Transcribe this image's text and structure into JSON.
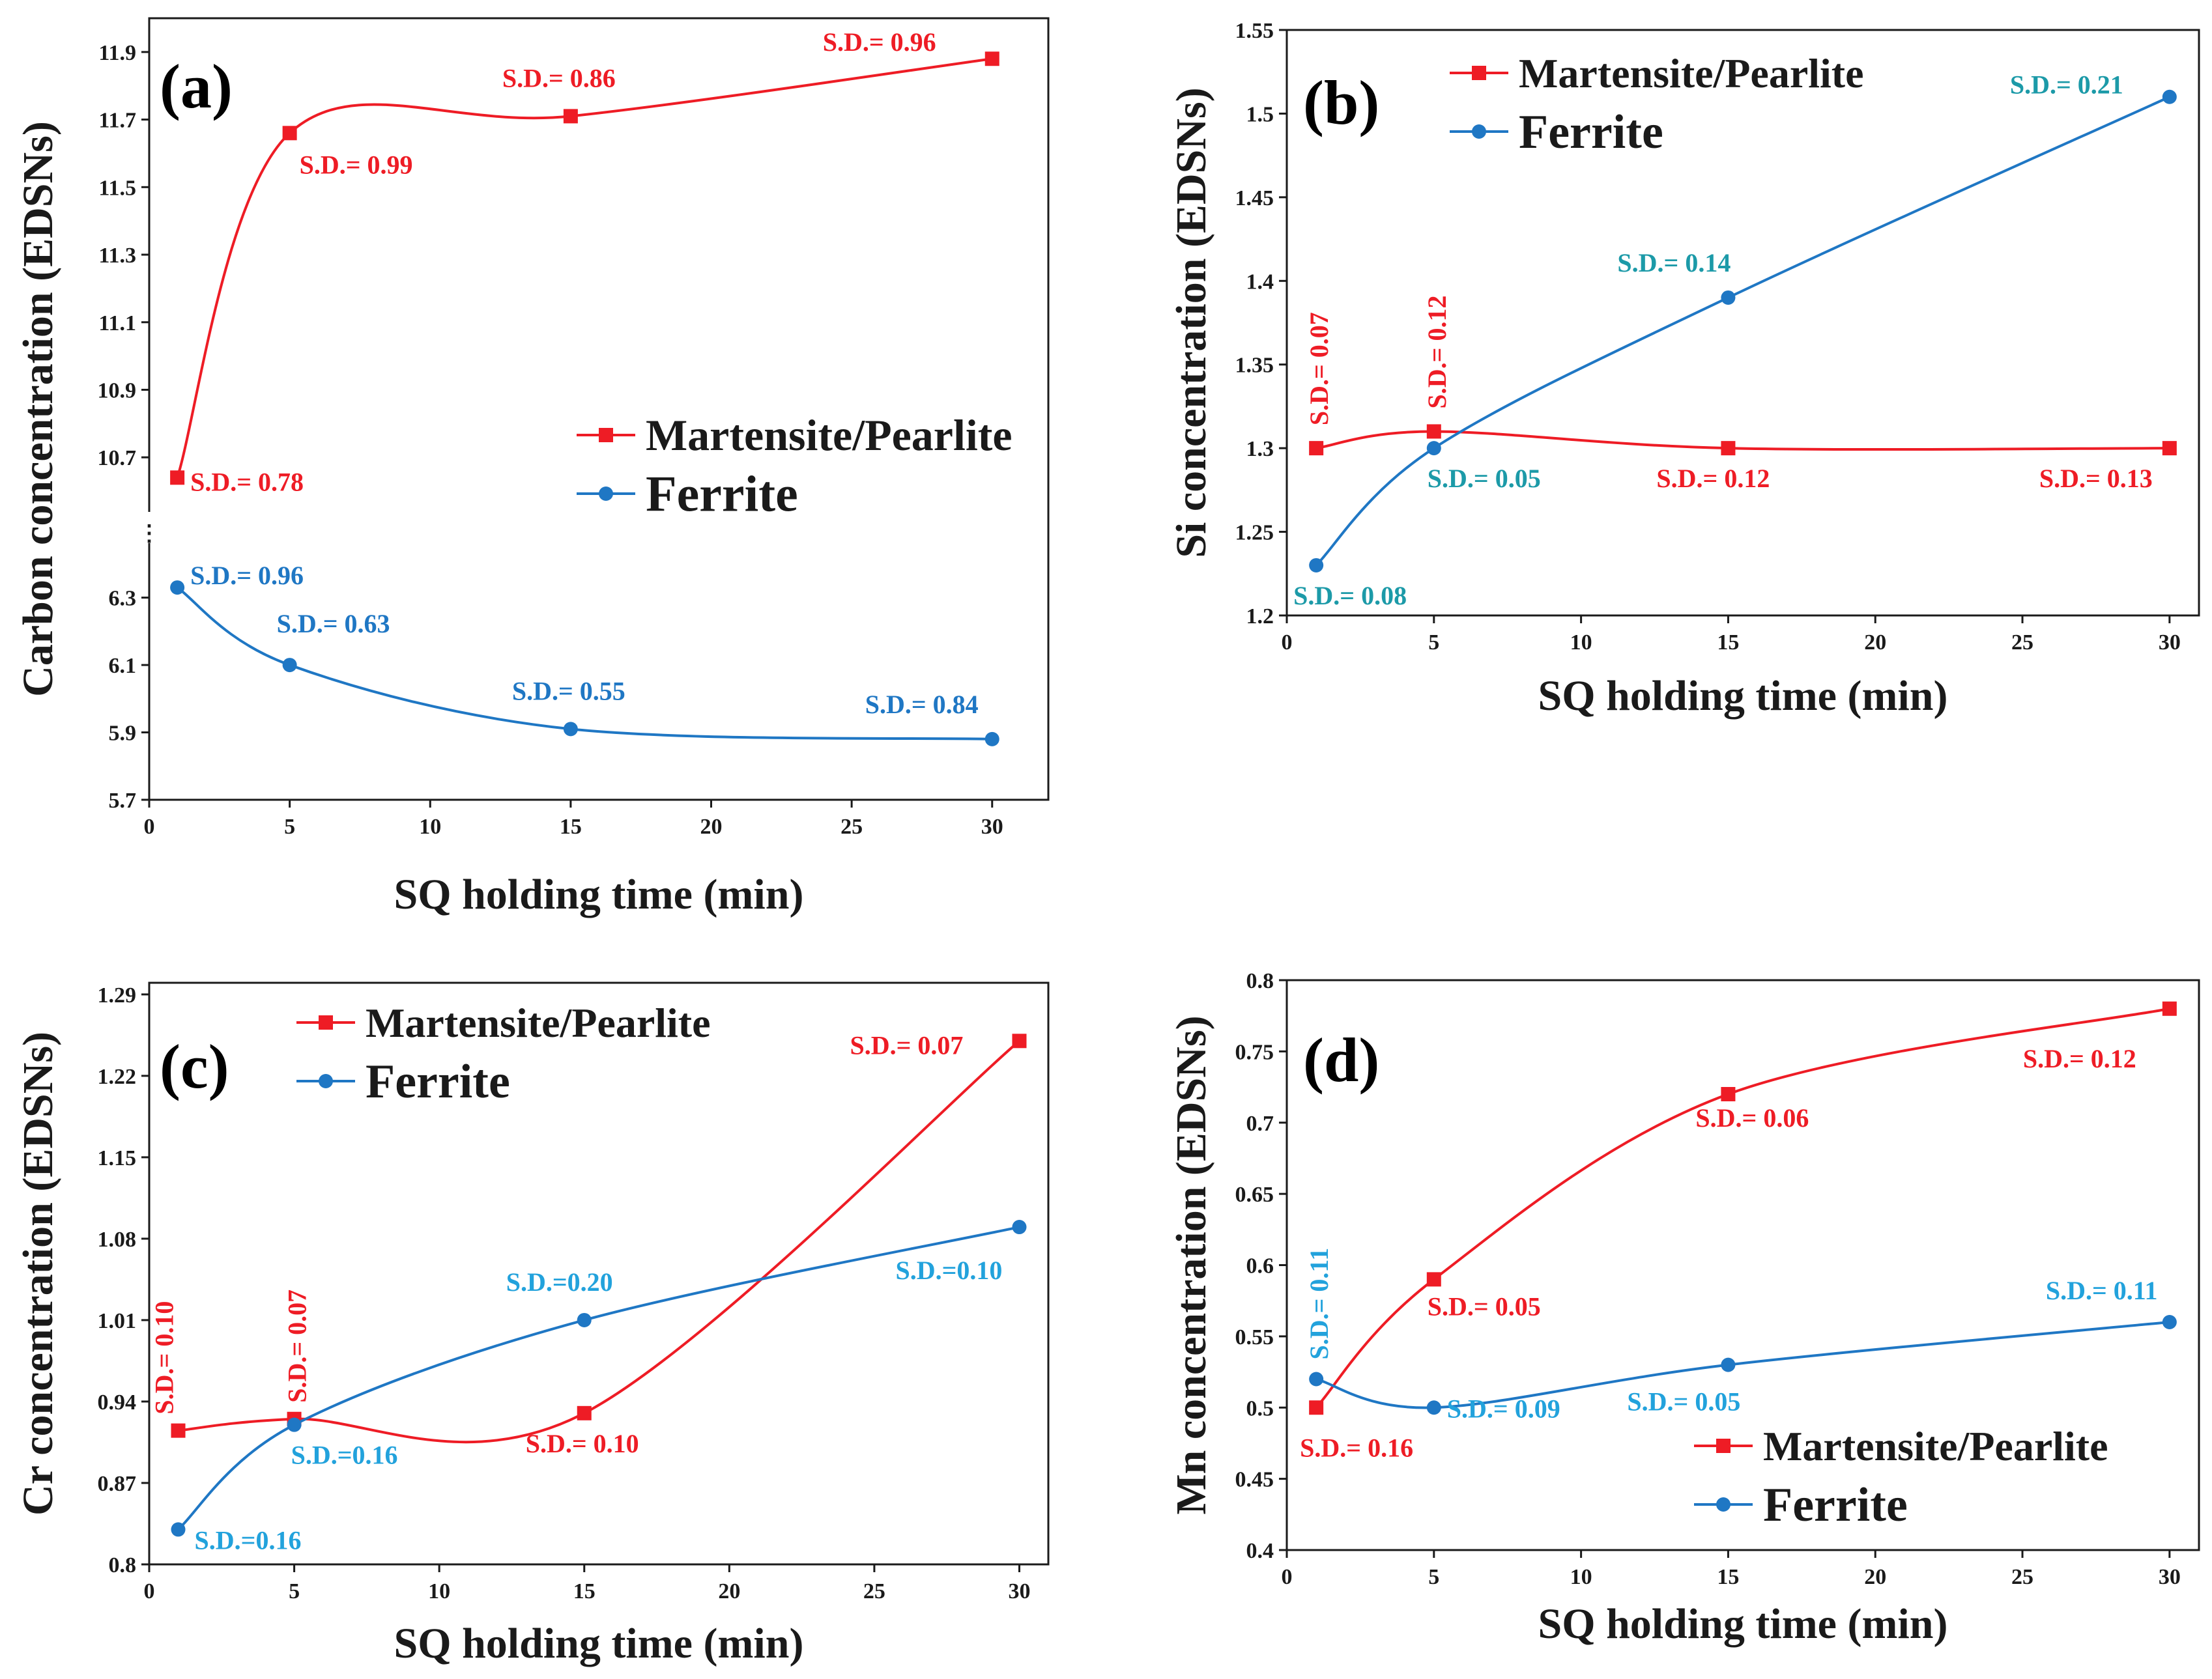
{
  "figure": {
    "colors": {
      "martensite": "#ee1c25",
      "ferrite": "#1f77c4",
      "ferrite_teal": "#1c9aa8",
      "ferrite_sky": "#22a2dc",
      "axis": "#1a1a1a"
    },
    "series_names": {
      "martensite": "Martensite/Pearlite",
      "ferrite": "Ferrite"
    },
    "axis_break": "⋮"
  },
  "chart_data": [
    {
      "id": "a",
      "type": "line",
      "panel_label": "(a)",
      "xlabel": "SQ holding time (min)",
      "ylabel": "Carbon concentration (EDSNs)",
      "xlim": [
        0,
        32
      ],
      "xticks": [
        0,
        5,
        10,
        15,
        20,
        25,
        30
      ],
      "broken_axis": true,
      "segments": [
        {
          "ylim": [
            10.55,
            12.0
          ],
          "yticks": [
            10.7,
            10.9,
            11.1,
            11.3,
            11.5,
            11.7,
            11.9
          ]
        },
        {
          "ylim": [
            5.7,
            6.45
          ],
          "yticks": [
            5.7,
            5.9,
            6.1,
            6.3
          ]
        }
      ],
      "legend": {
        "location": "center-right",
        "entries": [
          "Martensite/Pearlite",
          "Ferrite"
        ]
      },
      "series": [
        {
          "name": "Martensite/Pearlite",
          "marker": "square",
          "segment": 0,
          "x": [
            1,
            5,
            15,
            30
          ],
          "y": [
            10.64,
            11.66,
            11.71,
            11.88
          ],
          "sd_labels": [
            "S.D.= 0.78",
            "S.D.= 0.99",
            "S.D.= 0.86",
            "S.D.= 0.96"
          ]
        },
        {
          "name": "Ferrite",
          "marker": "circle",
          "segment": 1,
          "x": [
            1,
            5,
            15,
            30
          ],
          "y": [
            6.33,
            6.1,
            5.91,
            5.88
          ],
          "sd_labels": [
            "S.D.= 0.96",
            "S.D.= 0.63",
            "S.D.= 0.55",
            "S.D.= 0.84"
          ]
        }
      ]
    },
    {
      "id": "b",
      "type": "line",
      "panel_label": "(b)",
      "xlabel": "SQ holding time (min)",
      "ylabel": "Si  concentration (EDSNs)",
      "xlim": [
        0,
        31
      ],
      "ylim": [
        1.2,
        1.55
      ],
      "xticks": [
        0,
        5,
        10,
        15,
        20,
        25,
        30
      ],
      "yticks": [
        1.2,
        1.25,
        1.3,
        1.35,
        1.4,
        1.45,
        1.5,
        1.55
      ],
      "legend": {
        "location": "top-left",
        "entries": [
          "Martensite/Pearlite",
          "Ferrite"
        ]
      },
      "series": [
        {
          "name": "Martensite/Pearlite",
          "marker": "square",
          "x": [
            1,
            5,
            15,
            30
          ],
          "y": [
            1.3,
            1.31,
            1.3,
            1.3
          ],
          "sd_labels": [
            "S.D.= 0.07",
            "S.D.= 0.12",
            "S.D.= 0.12",
            "S.D.= 0.13"
          ]
        },
        {
          "name": "Ferrite",
          "marker": "circle",
          "x": [
            1,
            5,
            15,
            30
          ],
          "y": [
            1.23,
            1.3,
            1.39,
            1.51
          ],
          "sd_labels": [
            "S.D.= 0.08",
            "S.D.= 0.05",
            "S.D.= 0.14",
            "S.D.= 0.21"
          ]
        }
      ]
    },
    {
      "id": "c",
      "type": "line",
      "panel_label": "(c)",
      "xlabel": "SQ holding time (min)",
      "ylabel": "Cr concentration (EDSNs)",
      "xlim": [
        0,
        31
      ],
      "ylim": [
        0.8,
        1.3
      ],
      "xticks": [
        0,
        5,
        10,
        15,
        20,
        25,
        30
      ],
      "yticks": [
        0.8,
        0.87,
        0.94,
        1.01,
        1.08,
        1.15,
        1.22,
        1.29
      ],
      "legend": {
        "location": "top-left",
        "entries": [
          "Martensite/Pearlite",
          "Ferrite"
        ]
      },
      "series": [
        {
          "name": "Martensite/Pearlite",
          "marker": "square",
          "x": [
            1,
            5,
            15,
            30
          ],
          "y": [
            0.915,
            0.925,
            0.93,
            1.25
          ],
          "sd_labels": [
            "S.D.= 0.10",
            "S.D.= 0.07",
            "S.D.= 0.10",
            "S.D.= 0.07"
          ]
        },
        {
          "name": "Ferrite",
          "marker": "circle",
          "x": [
            1,
            5,
            15,
            30
          ],
          "y": [
            0.83,
            0.92,
            1.01,
            1.09
          ],
          "sd_labels": [
            "S.D.=0.16",
            "S.D.=0.16",
            "S.D.=0.20",
            "S.D.=0.10"
          ]
        }
      ]
    },
    {
      "id": "d",
      "type": "line",
      "panel_label": "(d)",
      "xlabel": "SQ holding time (min)",
      "ylabel": "Mn concentration (EDSNs)",
      "xlim": [
        0,
        31
      ],
      "ylim": [
        0.4,
        0.8
      ],
      "xticks": [
        0,
        5,
        10,
        15,
        20,
        25,
        30
      ],
      "yticks": [
        0.4,
        0.45,
        0.5,
        0.55,
        0.6,
        0.65,
        0.7,
        0.75,
        0.8
      ],
      "legend": {
        "location": "bottom-right",
        "entries": [
          "Martensite/Pearlite",
          "Ferrite"
        ]
      },
      "series": [
        {
          "name": "Martensite/Pearlite",
          "marker": "square",
          "x": [
            1,
            5,
            15,
            30
          ],
          "y": [
            0.5,
            0.59,
            0.72,
            0.78
          ],
          "sd_labels": [
            "S.D.= 0.16",
            "S.D.= 0.05",
            "S.D.= 0.06",
            "S.D.= 0.12"
          ]
        },
        {
          "name": "Ferrite",
          "marker": "circle",
          "x": [
            1,
            5,
            15,
            30
          ],
          "y": [
            0.52,
            0.5,
            0.53,
            0.56
          ],
          "sd_labels": [
            "S.D.= 0.11",
            "S.D.= 0.09",
            "S.D.= 0.05",
            "S.D.= 0.11"
          ]
        }
      ]
    }
  ]
}
